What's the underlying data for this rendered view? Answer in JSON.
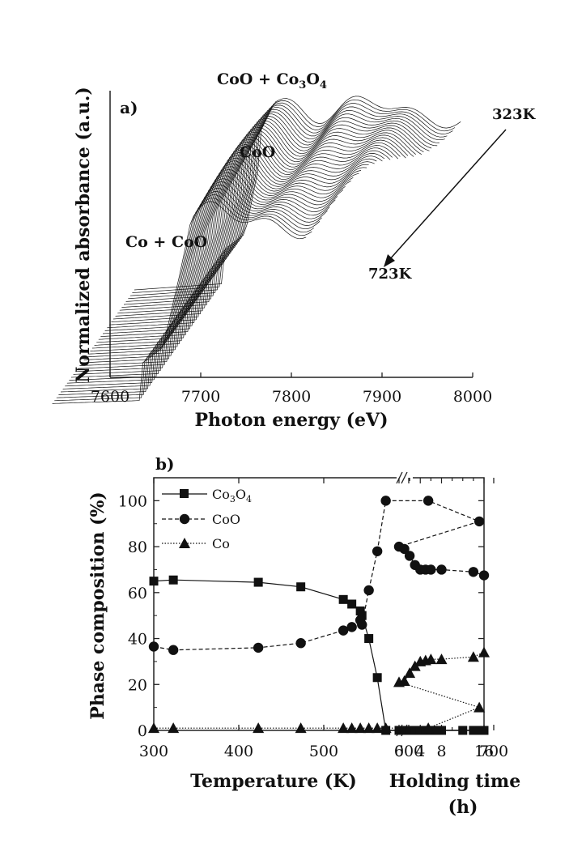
{
  "chart_data": [
    {
      "panel": "a)",
      "type": "line",
      "xlabel": "Photon energy (eV)",
      "ylabel": "Normalized  absorbance (a.u.)",
      "xticks": [
        "7600",
        "7700",
        "7800",
        "7900",
        "8000"
      ],
      "xlim": [
        7600,
        8000
      ],
      "y_ticks_shown": false,
      "n_spectra": 40,
      "annotations": {
        "top_phase": "CoO + Co3O4",
        "middle_phase": "CoO",
        "bottom_phase": "Co + CoO",
        "temp_start": "323K",
        "temp_end": "723K"
      }
    },
    {
      "panel": "b)",
      "type": "scatter",
      "ylabel": "Phase composition (%)",
      "ylim": [
        0,
        110
      ],
      "yticks": [
        "0",
        "20",
        "40",
        "60",
        "80",
        "100"
      ],
      "x_temperature": {
        "label": "Temperature (K)",
        "ticks": [
          "300",
          "400",
          "500",
          "600",
          "700"
        ],
        "range": [
          300,
          745
        ]
      },
      "x_holding": {
        "label_line1": "Holding time",
        "label_line2": "(h)",
        "ticks": [
          "0",
          "4",
          "8",
          "16"
        ]
      },
      "legend": [
        "Co3O4",
        "CoO",
        "Co"
      ],
      "series": [
        {
          "name": "Co3O4",
          "marker": "square",
          "line": "solid",
          "temperature": [
            [
              300,
              65
            ],
            [
              323,
              65.5
            ],
            [
              423,
              64.5
            ],
            [
              473,
              62.5
            ],
            [
              523,
              57
            ],
            [
              533,
              55
            ],
            [
              543,
              52
            ],
            [
              545,
              50
            ],
            [
              553,
              40
            ],
            [
              563,
              23
            ],
            [
              573,
              0
            ],
            [
              623,
              0
            ],
            [
              683,
              0
            ]
          ],
          "holding": [
            [
              0,
              0
            ],
            [
              1,
              0
            ],
            [
              2,
              0
            ],
            [
              3,
              0
            ],
            [
              4,
              0
            ],
            [
              5,
              0
            ],
            [
              6,
              0
            ],
            [
              7,
              0
            ],
            [
              8,
              0
            ],
            [
              12,
              0
            ],
            [
              14,
              0
            ],
            [
              16,
              0
            ]
          ]
        },
        {
          "name": "CoO",
          "marker": "circle",
          "line": "dash",
          "temperature": [
            [
              300,
              36.5
            ],
            [
              323,
              35
            ],
            [
              423,
              36
            ],
            [
              473,
              38
            ],
            [
              523,
              43.5
            ],
            [
              533,
              45
            ],
            [
              543,
              48
            ],
            [
              545,
              46
            ],
            [
              553,
              61
            ],
            [
              563,
              78
            ],
            [
              573,
              100
            ],
            [
              623,
              100
            ],
            [
              683,
              91
            ]
          ],
          "holding": [
            [
              0,
              80
            ],
            [
              1,
              79
            ],
            [
              2,
              76
            ],
            [
              3,
              72
            ],
            [
              4,
              70
            ],
            [
              5,
              70
            ],
            [
              6,
              70
            ],
            [
              8,
              70
            ],
            [
              14,
              69
            ],
            [
              16,
              67.5
            ]
          ]
        },
        {
          "name": "Co",
          "marker": "triangle",
          "line": "dot",
          "temperature": [
            [
              300,
              1
            ],
            [
              323,
              1
            ],
            [
              423,
              1
            ],
            [
              473,
              1
            ],
            [
              523,
              1
            ],
            [
              533,
              1
            ],
            [
              543,
              1
            ],
            [
              553,
              1
            ],
            [
              563,
              1
            ],
            [
              573,
              1
            ],
            [
              623,
              1
            ],
            [
              683,
              10
            ]
          ],
          "holding": [
            [
              0,
              21
            ],
            [
              1,
              21.5
            ],
            [
              2,
              25
            ],
            [
              3,
              28
            ],
            [
              4,
              30
            ],
            [
              5,
              30.5
            ],
            [
              6,
              31
            ],
            [
              8,
              31
            ],
            [
              14,
              32
            ],
            [
              16,
              34
            ]
          ]
        }
      ]
    }
  ]
}
